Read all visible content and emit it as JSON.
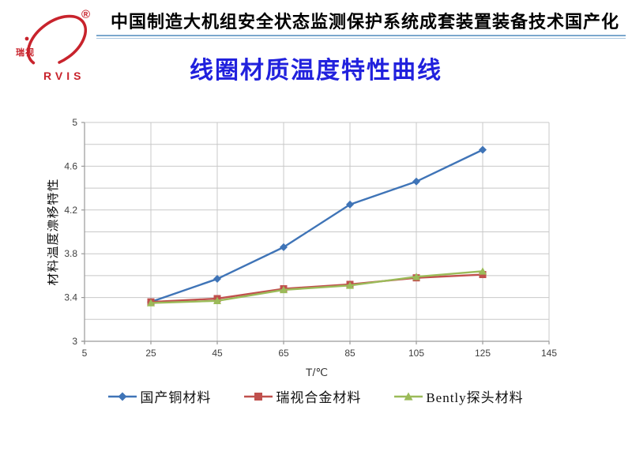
{
  "logo": {
    "registered_mark": "®",
    "cn_text": "瑞视",
    "latin_text": "RVIS",
    "brand_color": "#c8232c"
  },
  "header": {
    "title": "中国制造大机组安全状态监测保护系统成套装置装备技术国产化"
  },
  "slide": {
    "title": "线圈材质温度特性曲线",
    "title_color": "#2121dd"
  },
  "chart_data": {
    "type": "line",
    "title": "",
    "xlabel": "T/℃",
    "ylabel": "材料温度漂移特性",
    "xlim": [
      5,
      145
    ],
    "ylim": [
      3,
      5
    ],
    "x_ticks": [
      5,
      25,
      45,
      65,
      85,
      105,
      125,
      145
    ],
    "y_ticks": [
      5,
      4.6,
      4.2,
      3.8,
      3.4,
      3
    ],
    "y_tick_labels": [
      "5",
      "4.6",
      "4.2",
      "3.8",
      "3.4",
      "3"
    ],
    "minor_y_step": 0.2,
    "grid": true,
    "legend_position": "bottom",
    "categories": [
      25,
      45,
      65,
      85,
      105,
      125
    ],
    "series": [
      {
        "name": "国产铜材料",
        "color": "#3f74b7",
        "marker": "diamond",
        "values": [
          3.36,
          3.57,
          3.86,
          4.25,
          4.46,
          4.75
        ]
      },
      {
        "name": "瑞视合金材料",
        "color": "#c0504d",
        "marker": "square",
        "values": [
          3.36,
          3.39,
          3.48,
          3.52,
          3.58,
          3.61
        ]
      },
      {
        "name": "Bently探头材料",
        "color": "#9bbb59",
        "marker": "triangle",
        "values": [
          3.35,
          3.37,
          3.47,
          3.51,
          3.59,
          3.64
        ]
      }
    ],
    "gridline_color": "#c8c8c8",
    "axis_color": "#9a9a9a",
    "tick_label_color": "#3f3f3f"
  }
}
